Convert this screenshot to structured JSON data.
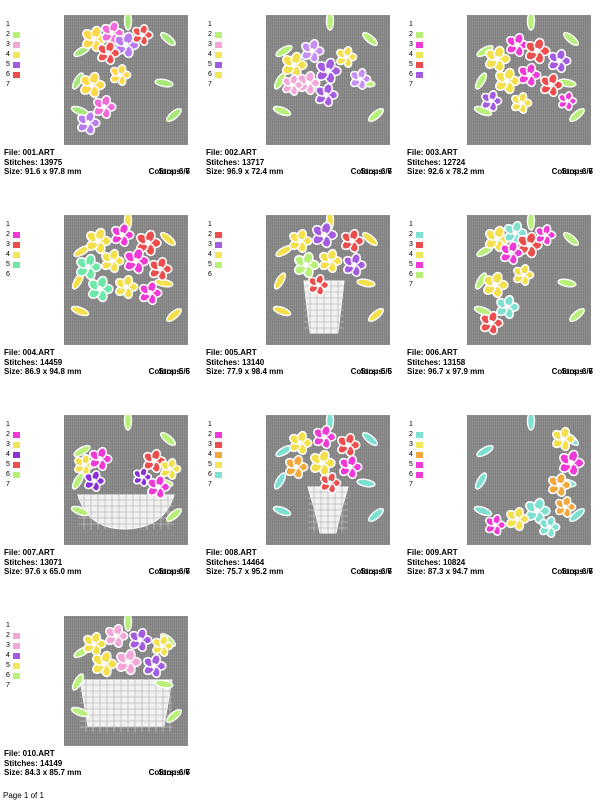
{
  "designs": [
    {
      "file": "File: 001.ART",
      "stitches": "Stitches: 13975",
      "size": "Size: 91.6 x 97.8 mm",
      "colors": "Colors: 6/7",
      "stops": "Stops: 6",
      "swatches": [
        "#ffffff",
        "#b8f07a",
        "#f4a6d8",
        "#f2e65a",
        "#a35ce0",
        "#ec4d4d",
        null
      ],
      "palette": [
        "#ffd84a",
        "#f06ad8",
        "#b77cf0",
        "#ee5050",
        "#a6e87a"
      ],
      "motif": "corner"
    },
    {
      "file": "File: 002.ART",
      "stitches": "Stitches: 13717",
      "size": "Size: 96.9 x 72.4 mm",
      "colors": "Colors: 6/7",
      "stops": "Stops: 6",
      "swatches": [
        "#ffffff",
        "#b8f07a",
        "#f4a6d8",
        "#f2e65a",
        "#a35ce0",
        "#f2e65a",
        null
      ],
      "palette": [
        "#f4e04a",
        "#c68ef0",
        "#a35ce0",
        "#f4a6d8",
        "#b8f07a"
      ],
      "motif": "spray"
    },
    {
      "file": "File: 003.ART",
      "stitches": "Stitches: 12724",
      "size": "Size: 92.6 x 78.2 mm",
      "colors": "Colors: 6/7",
      "stops": "Stops: 6",
      "swatches": [
        "#ffffff",
        "#b8f07a",
        "#f03ad8",
        "#f2e65a",
        "#ec4d4d",
        "#a35ce0",
        null
      ],
      "palette": [
        "#f4e04a",
        "#f03ad8",
        "#ec4d4d",
        "#a35ce0",
        "#b8f07a"
      ],
      "motif": "bunch"
    },
    {
      "file": "File: 004.ART",
      "stitches": "Stitches: 14459",
      "size": "Size: 86.9 x 94.8 mm",
      "colors": "Colors: 5/6",
      "stops": "Stops: 5",
      "swatches": [
        "#ffffff",
        "#f03ad8",
        "#ec4d4d",
        "#f2e65a",
        "#6ee8a8",
        "#ffffff"
      ],
      "palette": [
        "#f4e04a",
        "#f03ad8",
        "#ec4d4d",
        "#6ee8a8",
        "#f4e04a"
      ],
      "motif": "bouquet"
    },
    {
      "file": "File: 005.ART",
      "stitches": "Stitches: 13140",
      "size": "Size: 77.9 x 98.4 mm",
      "colors": "Colors: 5/6",
      "stops": "Stops: 5",
      "swatches": [
        "#ffffff",
        "#ec4d4d",
        "#a35ce0",
        "#f2e65a",
        "#b8f07a",
        "#ffffff"
      ],
      "palette": [
        "#f4e04a",
        "#a35ce0",
        "#ec4d4d",
        "#b8f07a",
        "#f4e04a"
      ],
      "motif": "basket-tall"
    },
    {
      "file": "File: 006.ART",
      "stitches": "Stitches: 13158",
      "size": "Size: 96.7 x 97.9 mm",
      "colors": "Colors: 6/7",
      "stops": "Stops: 6",
      "swatches": [
        "#ffffff",
        "#7de0d0",
        "#ec4d4d",
        "#f2e65a",
        "#f03ad8",
        "#b8f07a",
        null
      ],
      "palette": [
        "#f4e04a",
        "#7de0d0",
        "#ec4d4d",
        "#f03ad8",
        "#b8f07a"
      ],
      "motif": "corner"
    },
    {
      "file": "File: 007.ART",
      "stitches": "Stitches: 13071",
      "size": "Size: 97.6 x 65.0 mm",
      "colors": "Colors: 6/7",
      "stops": "Stops: 6",
      "swatches": [
        "#ffffff",
        "#f03ad8",
        "#f2e65a",
        "#8a30d8",
        "#ec4d4d",
        "#b8f07a",
        null
      ],
      "palette": [
        "#f4e04a",
        "#f03ad8",
        "#8a30d8",
        "#ec4d4d",
        "#b8f07a"
      ],
      "motif": "swan"
    },
    {
      "file": "File: 008.ART",
      "stitches": "Stitches: 14464",
      "size": "Size: 75.7 x 95.2 mm",
      "colors": "Colors: 6/7",
      "stops": "Stops: 6",
      "swatches": [
        "#ffffff",
        "#f03ad8",
        "#ec4d4d",
        "#f2a83a",
        "#f2e65a",
        "#7de0d0",
        null
      ],
      "palette": [
        "#f4e04a",
        "#f03ad8",
        "#ec4d4d",
        "#f2a83a",
        "#7de0d0"
      ],
      "motif": "vase"
    },
    {
      "file": "File: 009.ART",
      "stitches": "Stitches: 10824",
      "size": "Size: 87.3 x 94.7 mm",
      "colors": "Colors: 6/7",
      "stops": "Stops: 6",
      "swatches": [
        "#ffffff",
        "#7de0d0",
        "#f2e65a",
        "#f2a83a",
        "#f03ad8",
        "#f03ad8",
        null
      ],
      "palette": [
        "#f4e04a",
        "#f03ad8",
        "#f2a83a",
        "#7de0d0",
        "#7de0d0"
      ],
      "motif": "corner-r"
    },
    {
      "file": "File: 010.ART",
      "stitches": "Stitches: 14149",
      "size": "Size: 84.3 x 85.7 mm",
      "colors": "Colors: 6/7",
      "stops": "Stops: 6",
      "swatches": [
        "#ffffff",
        "#f4a6d8",
        "#f4a6d8",
        "#a35ce0",
        "#f2e65a",
        "#b8f07a",
        null
      ],
      "palette": [
        "#f4e04a",
        "#f4a6d8",
        "#a35ce0",
        "#f4e04a",
        "#b8f07a"
      ],
      "motif": "basket"
    }
  ],
  "footer": "Page 1 of 1"
}
